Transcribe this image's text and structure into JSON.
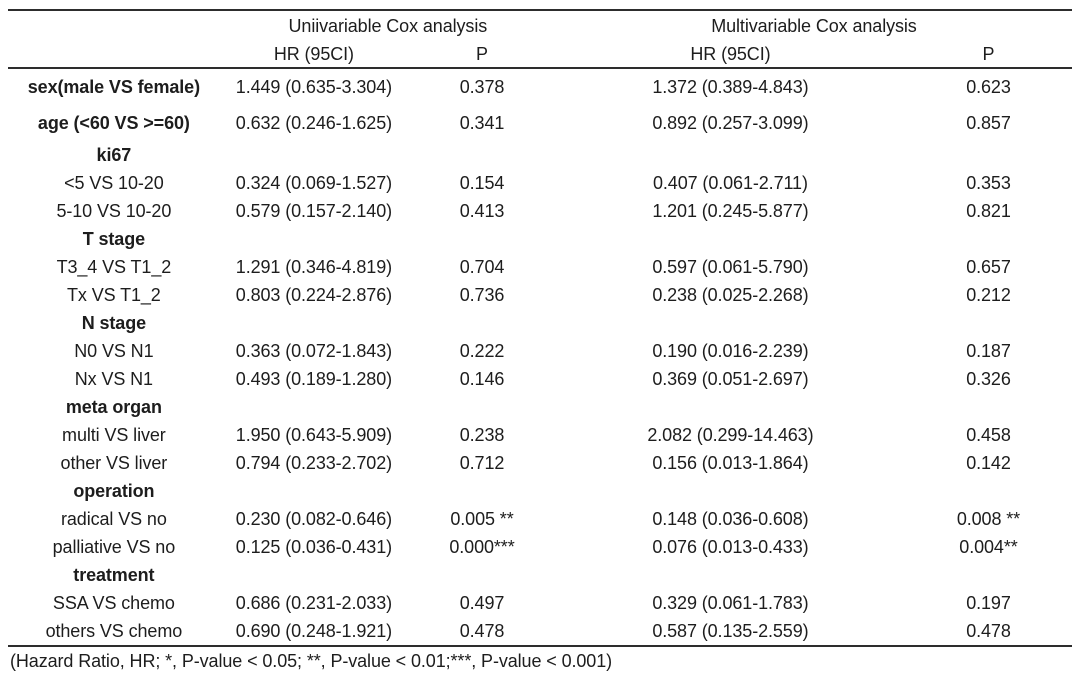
{
  "table": {
    "span_headers": {
      "univariable": "Uniivariable Cox analysis",
      "multivariable": "Multivariable Cox analysis"
    },
    "sub_headers": {
      "uni_hr": "HR (95CI)",
      "uni_p": "P",
      "multi_hr": "HR (95CI)",
      "multi_p": "P"
    },
    "rows": [
      {
        "label": "sex(male VS female)",
        "style": "variable",
        "tall": true,
        "uni_hr": "1.449 (0.635-3.304)",
        "uni_p": "0.378",
        "multi_hr": "1.372 (0.389-4.843)",
        "multi_p": "0.623"
      },
      {
        "label": "age (<60 VS >=60)",
        "style": "variable",
        "tall": true,
        "uni_hr": "0.632 (0.246-1.625)",
        "uni_p": "0.341",
        "multi_hr": "0.892 (0.257-3.099)",
        "multi_p": "0.857"
      },
      {
        "label": "ki67",
        "style": "group",
        "tall": false,
        "uni_hr": "",
        "uni_p": "",
        "multi_hr": "",
        "multi_p": ""
      },
      {
        "label": "<5 VS 10-20",
        "style": "item",
        "tall": false,
        "uni_hr": "0.324 (0.069-1.527)",
        "uni_p": "0.154",
        "multi_hr": "0.407 (0.061-2.711)",
        "multi_p": "0.353"
      },
      {
        "label": "5-10 VS 10-20",
        "style": "item",
        "tall": false,
        "uni_hr": "0.579 (0.157-2.140)",
        "uni_p": "0.413",
        "multi_hr": "1.201 (0.245-5.877)",
        "multi_p": "0.821"
      },
      {
        "label": "T stage",
        "style": "group",
        "tall": false,
        "uni_hr": "",
        "uni_p": "",
        "multi_hr": "",
        "multi_p": ""
      },
      {
        "label": "T3_4 VS T1_2",
        "style": "item",
        "tall": false,
        "uni_hr": "1.291 (0.346-4.819)",
        "uni_p": "0.704",
        "multi_hr": "0.597 (0.061-5.790)",
        "multi_p": "0.657"
      },
      {
        "label": "Tx VS T1_2",
        "style": "item",
        "tall": false,
        "uni_hr": "0.803 (0.224-2.876)",
        "uni_p": "0.736",
        "multi_hr": "0.238 (0.025-2.268)",
        "multi_p": "0.212"
      },
      {
        "label": "N stage",
        "style": "group",
        "tall": false,
        "uni_hr": "",
        "uni_p": "",
        "multi_hr": "",
        "multi_p": ""
      },
      {
        "label": "N0 VS N1",
        "style": "item",
        "tall": false,
        "uni_hr": "0.363 (0.072-1.843)",
        "uni_p": "0.222",
        "multi_hr": "0.190 (0.016-2.239)",
        "multi_p": "0.187"
      },
      {
        "label": "Nx VS N1",
        "style": "item",
        "tall": false,
        "uni_hr": "0.493 (0.189-1.280)",
        "uni_p": "0.146",
        "multi_hr": "0.369 (0.051-2.697)",
        "multi_p": "0.326"
      },
      {
        "label": "meta organ",
        "style": "group",
        "tall": false,
        "uni_hr": "",
        "uni_p": "",
        "multi_hr": "",
        "multi_p": ""
      },
      {
        "label": "multi VS liver",
        "style": "item",
        "tall": false,
        "uni_hr": "1.950 (0.643-5.909)",
        "uni_p": "0.238",
        "multi_hr": "2.082 (0.299-14.463)",
        "multi_p": "0.458"
      },
      {
        "label": "other VS liver",
        "style": "item",
        "tall": false,
        "uni_hr": "0.794 (0.233-2.702)",
        "uni_p": "0.712",
        "multi_hr": "0.156 (0.013-1.864)",
        "multi_p": "0.142"
      },
      {
        "label": "operation",
        "style": "group",
        "tall": false,
        "uni_hr": "",
        "uni_p": "",
        "multi_hr": "",
        "multi_p": ""
      },
      {
        "label": "radical VS no",
        "style": "item",
        "tall": false,
        "uni_hr": "0.230 (0.082-0.646)",
        "uni_p": "0.005 **",
        "multi_hr": "0.148 (0.036-0.608)",
        "multi_p": "0.008 **"
      },
      {
        "label": "palliative VS no",
        "style": "item",
        "tall": false,
        "uni_hr": "0.125 (0.036-0.431)",
        "uni_p": "0.000***",
        "multi_hr": "0.076 (0.013-0.433)",
        "multi_p": "0.004**"
      },
      {
        "label": "treatment",
        "style": "group",
        "tall": false,
        "uni_hr": "",
        "uni_p": "",
        "multi_hr": "",
        "multi_p": ""
      },
      {
        "label": "SSA VS chemo",
        "style": "item",
        "tall": false,
        "uni_hr": "0.686 (0.231-2.033)",
        "uni_p": "0.497",
        "multi_hr": "0.329 (0.061-1.783)",
        "multi_p": "0.197"
      },
      {
        "label": "others VS chemo",
        "style": "item",
        "tall": false,
        "uni_hr": "0.690 (0.248-1.921)",
        "uni_p": "0.478",
        "multi_hr": "0.587 (0.135-2.559)",
        "multi_p": "0.478"
      }
    ]
  },
  "footnote": "(Hazard Ratio, HR; *, P-value < 0.05; **, P-value < 0.01;***, P-value < 0.001)",
  "colors": {
    "text": "#1d1d1d",
    "rule_line": "#2d2d2d",
    "background": "#ffffff"
  }
}
